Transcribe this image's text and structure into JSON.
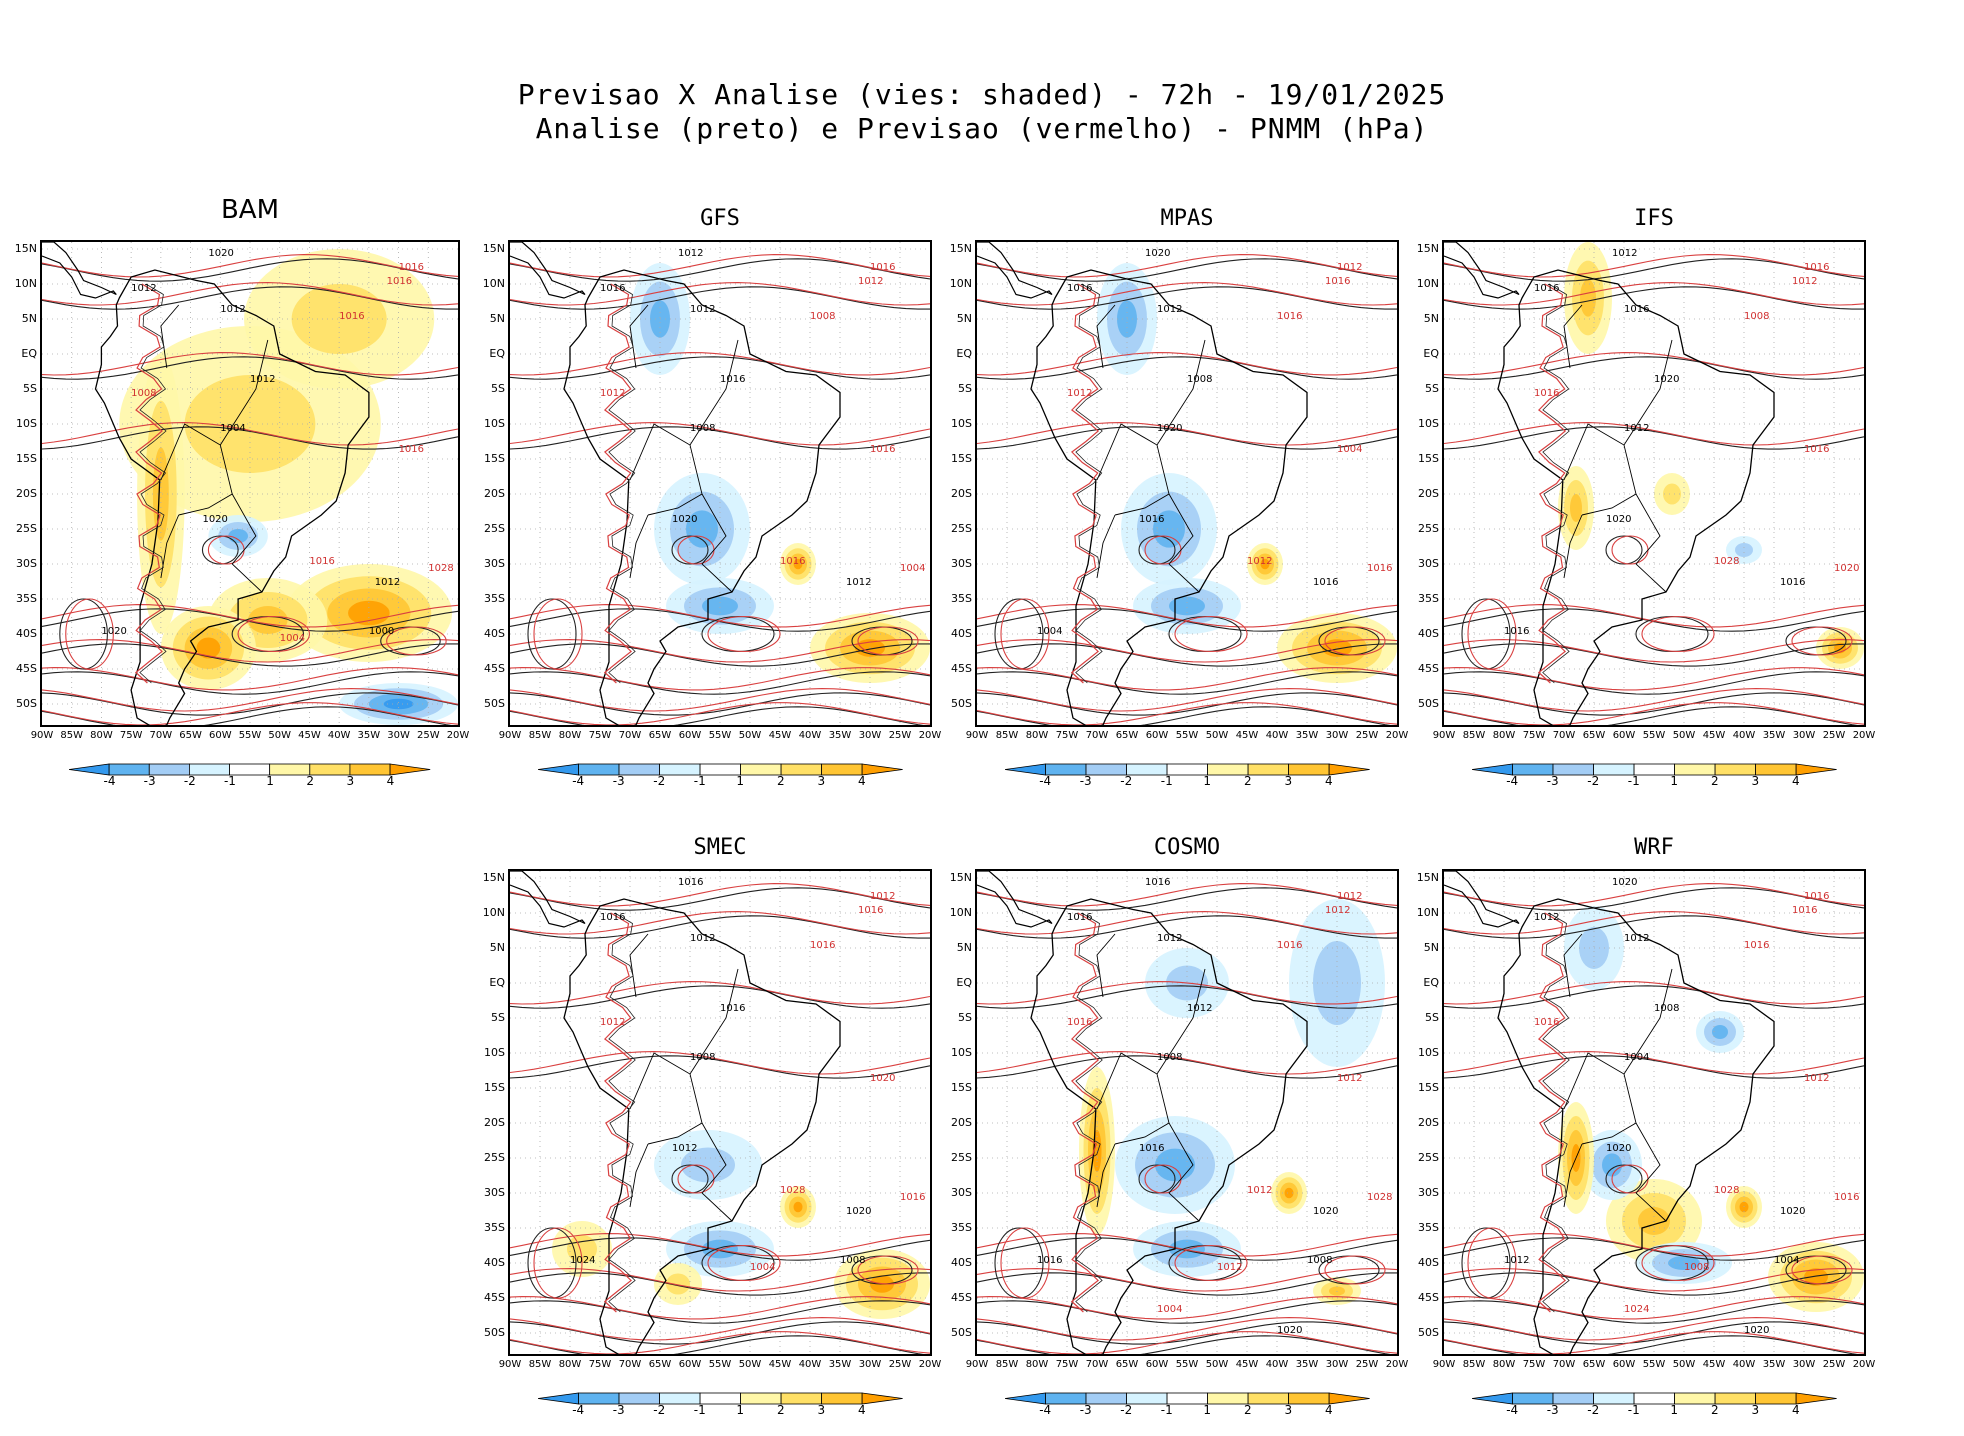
{
  "header": {
    "line1": "Previsao X Analise (vies: shaded) - 72h - 19/01/2025",
    "line2": "Analise (preto) e Previsao (vermelho) - PNMM (hPa)"
  },
  "y_ticks": [
    "15N",
    "10N",
    "5N",
    "EQ",
    "5S",
    "10S",
    "15S",
    "20S",
    "25S",
    "30S",
    "35S",
    "40S",
    "45S",
    "50S"
  ],
  "x_ticks": [
    "90W",
    "85W",
    "80W",
    "75W",
    "70W",
    "65W",
    "60W",
    "55W",
    "50W",
    "45W",
    "40W",
    "35W",
    "30W",
    "25W",
    "20W"
  ],
  "colorbar": {
    "labels": [
      "-4",
      "-3",
      "-2",
      "-1",
      "1",
      "2",
      "3",
      "4"
    ],
    "colors": [
      "#3399ee",
      "#5fb3f0",
      "#a3cdf5",
      "#d6f3ff",
      "#ffffff",
      "#fff7a8",
      "#ffe066",
      "#ffc533",
      "#ff9f00"
    ]
  },
  "panels": [
    {
      "name": "BAM",
      "bias": "warm",
      "labels": [
        "1020",
        "1016",
        "1012",
        "1016",
        "1012",
        "1016",
        "1012",
        "1008",
        "1004",
        "1016",
        "1020",
        "1016",
        "1012",
        "1028",
        "1020",
        "1004",
        "1000"
      ]
    },
    {
      "name": "GFS",
      "bias": "cool",
      "labels": [
        "1012",
        "1016",
        "1016",
        "1012",
        "1012",
        "1008",
        "1016",
        "1012",
        "1008",
        "1016",
        "1020",
        "1016",
        "1012",
        "1004"
      ]
    },
    {
      "name": "MPAS",
      "bias": "cool",
      "labels": [
        "1020",
        "1012",
        "1016",
        "1016",
        "1012",
        "1016",
        "1008",
        "1012",
        "1020",
        "1004",
        "1016",
        "1012",
        "1016",
        "1016",
        "1004"
      ]
    },
    {
      "name": "IFS",
      "bias": "neutral",
      "labels": [
        "1012",
        "1016",
        "1016",
        "1012",
        "1016",
        "1008",
        "1020",
        "1016",
        "1012",
        "1016",
        "1020",
        "1028",
        "1016",
        "1020",
        "1016"
      ]
    },
    {
      "name": "SMEC",
      "bias": "mixed",
      "labels": [
        "1016",
        "1012",
        "1016",
        "1016",
        "1012",
        "1016",
        "1016",
        "1012",
        "1008",
        "1020",
        "1012",
        "1028",
        "1020",
        "1016",
        "1024",
        "1004",
        "1008"
      ]
    },
    {
      "name": "COSMO",
      "bias": "coolE",
      "labels": [
        "1016",
        "1012",
        "1016",
        "1012",
        "1012",
        "1016",
        "1012",
        "1016",
        "1008",
        "1012",
        "1016",
        "1012",
        "1020",
        "1028",
        "1016",
        "1012",
        "1008",
        "1004",
        "1020"
      ]
    },
    {
      "name": "WRF",
      "bias": "warm2",
      "labels": [
        "1020",
        "1016",
        "1012",
        "1016",
        "1012",
        "1016",
        "1008",
        "1016",
        "1004",
        "1012",
        "1020",
        "1028",
        "1020",
        "1016",
        "1012",
        "1008",
        "1004",
        "1024",
        "1020"
      ]
    }
  ]
}
